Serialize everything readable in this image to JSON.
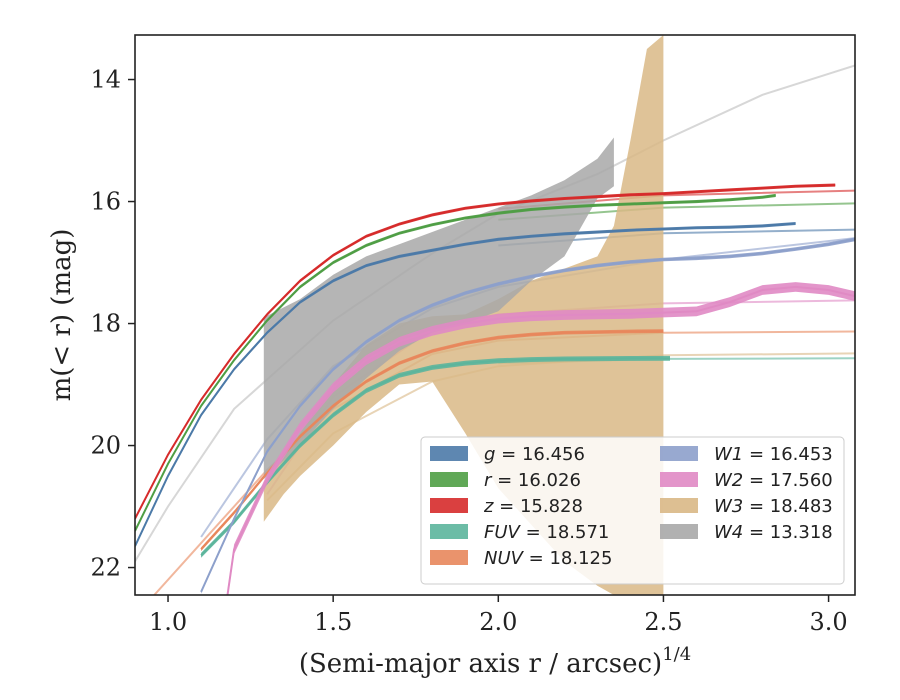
{
  "chart_data": {
    "type": "line",
    "xlabel": "(Semi-major axis r / arcsec)",
    "xlabel_sup": "1/4",
    "ylabel": "m(< r) (mag)",
    "xlim": [
      0.9,
      3.08
    ],
    "ylim": [
      22.45,
      13.27
    ],
    "y_inverted": true,
    "grid": false,
    "legend_position": "lower-right",
    "x_ticks": [
      1.0,
      1.5,
      2.0,
      2.5,
      3.0
    ],
    "x_tick_labels": [
      "1.0",
      "1.5",
      "2.0",
      "2.5",
      "3.0"
    ],
    "y_ticks": [
      14,
      16,
      18,
      20,
      22
    ],
    "y_tick_labels": [
      "14",
      "16",
      "18",
      "20",
      "22"
    ],
    "series": [
      {
        "name": "g = 16.456",
        "band": "g",
        "value": "16.456",
        "color": "#4c7aa8",
        "type": "band",
        "band_width": 0.05,
        "x": [
          0.9,
          1.0,
          1.1,
          1.2,
          1.3,
          1.4,
          1.5,
          1.6,
          1.7,
          1.8,
          1.9,
          2.0,
          2.1,
          2.2,
          2.3,
          2.4,
          2.5,
          2.6,
          2.7,
          2.8,
          2.9
        ],
        "y": [
          21.65,
          20.5,
          19.5,
          18.75,
          18.15,
          17.65,
          17.3,
          17.05,
          16.9,
          16.8,
          16.7,
          16.62,
          16.57,
          16.53,
          16.5,
          16.47,
          16.45,
          16.43,
          16.42,
          16.4,
          16.36
        ]
      },
      {
        "name": "r = 16.026",
        "band": "r",
        "value": "16.026",
        "color": "#4f9e45",
        "type": "band",
        "band_width": 0.05,
        "x": [
          0.9,
          1.0,
          1.1,
          1.2,
          1.3,
          1.4,
          1.5,
          1.6,
          1.7,
          1.8,
          1.9,
          2.0,
          2.1,
          2.2,
          2.3,
          2.4,
          2.5,
          2.6,
          2.7,
          2.8,
          2.84
        ],
        "y": [
          21.4,
          20.3,
          19.35,
          18.6,
          17.95,
          17.4,
          17.0,
          16.72,
          16.52,
          16.38,
          16.27,
          16.19,
          16.13,
          16.09,
          16.06,
          16.04,
          16.02,
          16.0,
          15.97,
          15.93,
          15.9
        ]
      },
      {
        "name": "z = 15.828",
        "band": "z",
        "value": "15.828",
        "color": "#d62b2b",
        "type": "band",
        "band_width": 0.05,
        "x": [
          0.9,
          1.0,
          1.1,
          1.2,
          1.3,
          1.4,
          1.5,
          1.6,
          1.7,
          1.8,
          1.9,
          2.0,
          2.1,
          2.2,
          2.3,
          2.4,
          2.5,
          2.6,
          2.7,
          2.8,
          2.9,
          3.02
        ],
        "y": [
          21.2,
          20.15,
          19.25,
          18.5,
          17.85,
          17.3,
          16.88,
          16.57,
          16.37,
          16.22,
          16.11,
          16.04,
          15.99,
          15.95,
          15.92,
          15.89,
          15.87,
          15.84,
          15.81,
          15.78,
          15.75,
          15.73
        ]
      },
      {
        "name": "FUV = 18.571",
        "band": "FUV",
        "value": "18.571",
        "color": "#5cb59c",
        "type": "band",
        "band_width": 0.08,
        "x": [
          1.1,
          1.2,
          1.3,
          1.4,
          1.5,
          1.6,
          1.7,
          1.8,
          1.9,
          2.0,
          2.1,
          2.2,
          2.3,
          2.4,
          2.52
        ],
        "y": [
          21.8,
          21.25,
          20.6,
          20.0,
          19.5,
          19.1,
          18.85,
          18.72,
          18.65,
          18.61,
          18.59,
          18.58,
          18.575,
          18.572,
          18.571
        ]
      },
      {
        "name": "NUV = 18.125",
        "band": "NUV",
        "value": "18.125",
        "color": "#e8875c",
        "type": "band",
        "band_width": 0.06,
        "x": [
          1.1,
          1.2,
          1.3,
          1.4,
          1.5,
          1.6,
          1.7,
          1.8,
          1.9,
          2.0,
          2.1,
          2.2,
          2.3,
          2.4,
          2.5
        ],
        "y": [
          21.7,
          21.1,
          20.45,
          19.85,
          19.35,
          18.95,
          18.65,
          18.45,
          18.32,
          18.23,
          18.18,
          18.15,
          18.14,
          18.13,
          18.125
        ]
      },
      {
        "name": "W1 = 16.453",
        "band": "W1",
        "value": "16.453",
        "color": "#8da0cb",
        "type": "band",
        "band_width": 0.06,
        "x": [
          1.1,
          1.2,
          1.3,
          1.4,
          1.5,
          1.6,
          1.7,
          1.8,
          1.9,
          2.0,
          2.1,
          2.2,
          2.3,
          2.4,
          2.5,
          2.6,
          2.7,
          2.8,
          2.9,
          3.0,
          3.08
        ],
        "y": [
          22.4,
          21.2,
          20.1,
          19.35,
          18.75,
          18.3,
          17.95,
          17.7,
          17.5,
          17.35,
          17.23,
          17.13,
          17.05,
          16.99,
          16.95,
          16.93,
          16.9,
          16.85,
          16.78,
          16.7,
          16.62
        ]
      },
      {
        "name": "W2 = 17.560",
        "band": "W2",
        "value": "17.560",
        "color": "#e08ac4",
        "type": "band",
        "band_width": 0.16,
        "x": [
          1.18,
          1.2,
          1.3,
          1.4,
          1.5,
          1.6,
          1.7,
          1.8,
          1.9,
          2.0,
          2.1,
          2.2,
          2.3,
          2.4,
          2.5,
          2.6,
          2.7,
          2.8,
          2.9,
          3.0,
          3.08
        ],
        "y": [
          22.45,
          21.7,
          20.55,
          19.7,
          19.05,
          18.6,
          18.3,
          18.12,
          18.0,
          17.92,
          17.88,
          17.86,
          17.85,
          17.84,
          17.82,
          17.8,
          17.65,
          17.45,
          17.4,
          17.45,
          17.55
        ]
      },
      {
        "name": "W3 = 18.483",
        "band": "W3",
        "value": "18.483",
        "color": "#d9b886",
        "type": "area",
        "x": [
          1.29,
          1.35,
          1.4,
          1.5,
          1.6,
          1.7,
          1.8,
          1.9,
          2.0,
          2.1,
          2.2,
          2.3,
          2.35,
          2.4,
          2.45,
          2.5
        ],
        "y_upper": [
          20.6,
          20.2,
          19.8,
          19.0,
          18.35,
          18.0,
          17.88,
          17.85,
          17.6,
          17.3,
          17.1,
          16.9,
          16.4,
          15.0,
          13.5,
          13.27
        ],
        "y_lower": [
          21.25,
          20.8,
          20.5,
          20.0,
          19.45,
          19.0,
          18.95,
          19.8,
          20.7,
          21.3,
          21.9,
          22.3,
          22.45,
          22.45,
          22.45,
          22.45
        ]
      },
      {
        "name": "W4 = 13.318",
        "band": "W4",
        "value": "13.318",
        "color": "#a8a8a8",
        "type": "area",
        "x": [
          1.29,
          1.4,
          1.5,
          1.6,
          1.7,
          1.8,
          1.9,
          2.0,
          2.1,
          2.2,
          2.3,
          2.35
        ],
        "y_upper": [
          17.9,
          17.6,
          17.2,
          16.9,
          16.7,
          16.5,
          16.3,
          16.1,
          15.9,
          15.65,
          15.3,
          14.95
        ],
        "y_lower": [
          20.55,
          20.0,
          19.4,
          18.9,
          18.45,
          18.15,
          18.0,
          17.8,
          17.3,
          16.9,
          15.95,
          15.75
        ]
      }
    ],
    "model_curves": [
      {
        "color": "#d62b2b",
        "x": [
          2.0,
          2.5,
          3.08
        ],
        "y": [
          16.12,
          15.9,
          15.82
        ]
      },
      {
        "color": "#4f9e45",
        "x": [
          2.0,
          2.5,
          3.08
        ],
        "y": [
          16.3,
          16.1,
          16.03
        ]
      },
      {
        "color": "#4c7aa8",
        "x": [
          2.0,
          2.5,
          3.08
        ],
        "y": [
          16.72,
          16.52,
          16.46
        ]
      },
      {
        "color": "#8da0cb",
        "x": [
          1.1,
          1.3,
          1.5,
          1.8,
          2.0,
          2.5,
          3.08
        ],
        "y": [
          21.5,
          19.9,
          18.7,
          17.75,
          17.4,
          16.95,
          16.6
        ]
      },
      {
        "color": "#e08ac4",
        "x": [
          1.3,
          1.5,
          1.8,
          2.0,
          2.5,
          3.08
        ],
        "y": [
          20.8,
          19.2,
          18.1,
          17.85,
          17.67,
          17.62
        ]
      },
      {
        "color": "#e8875c",
        "x": [
          0.9,
          1.1,
          1.3,
          1.5,
          1.8,
          2.0,
          2.5,
          3.08
        ],
        "y": [
          22.8,
          21.6,
          20.4,
          19.4,
          18.5,
          18.28,
          18.15,
          18.13
        ]
      },
      {
        "color": "#5cb59c",
        "x": [
          2.0,
          2.5,
          3.08
        ],
        "y": [
          18.65,
          18.58,
          18.57
        ]
      },
      {
        "color": "#d9b886",
        "x": [
          1.3,
          1.5,
          1.8,
          2.0,
          2.5,
          3.08
        ],
        "y": [
          20.9,
          19.8,
          18.95,
          18.7,
          18.52,
          18.49
        ]
      },
      {
        "color": "#bdbdbd",
        "x": [
          0.9,
          1.0,
          1.2,
          1.5,
          1.8,
          2.0,
          2.3,
          2.5,
          2.8,
          3.08
        ],
        "y": [
          21.9,
          21.0,
          19.4,
          17.95,
          16.85,
          16.2,
          15.55,
          15.0,
          14.25,
          13.77
        ]
      }
    ]
  }
}
